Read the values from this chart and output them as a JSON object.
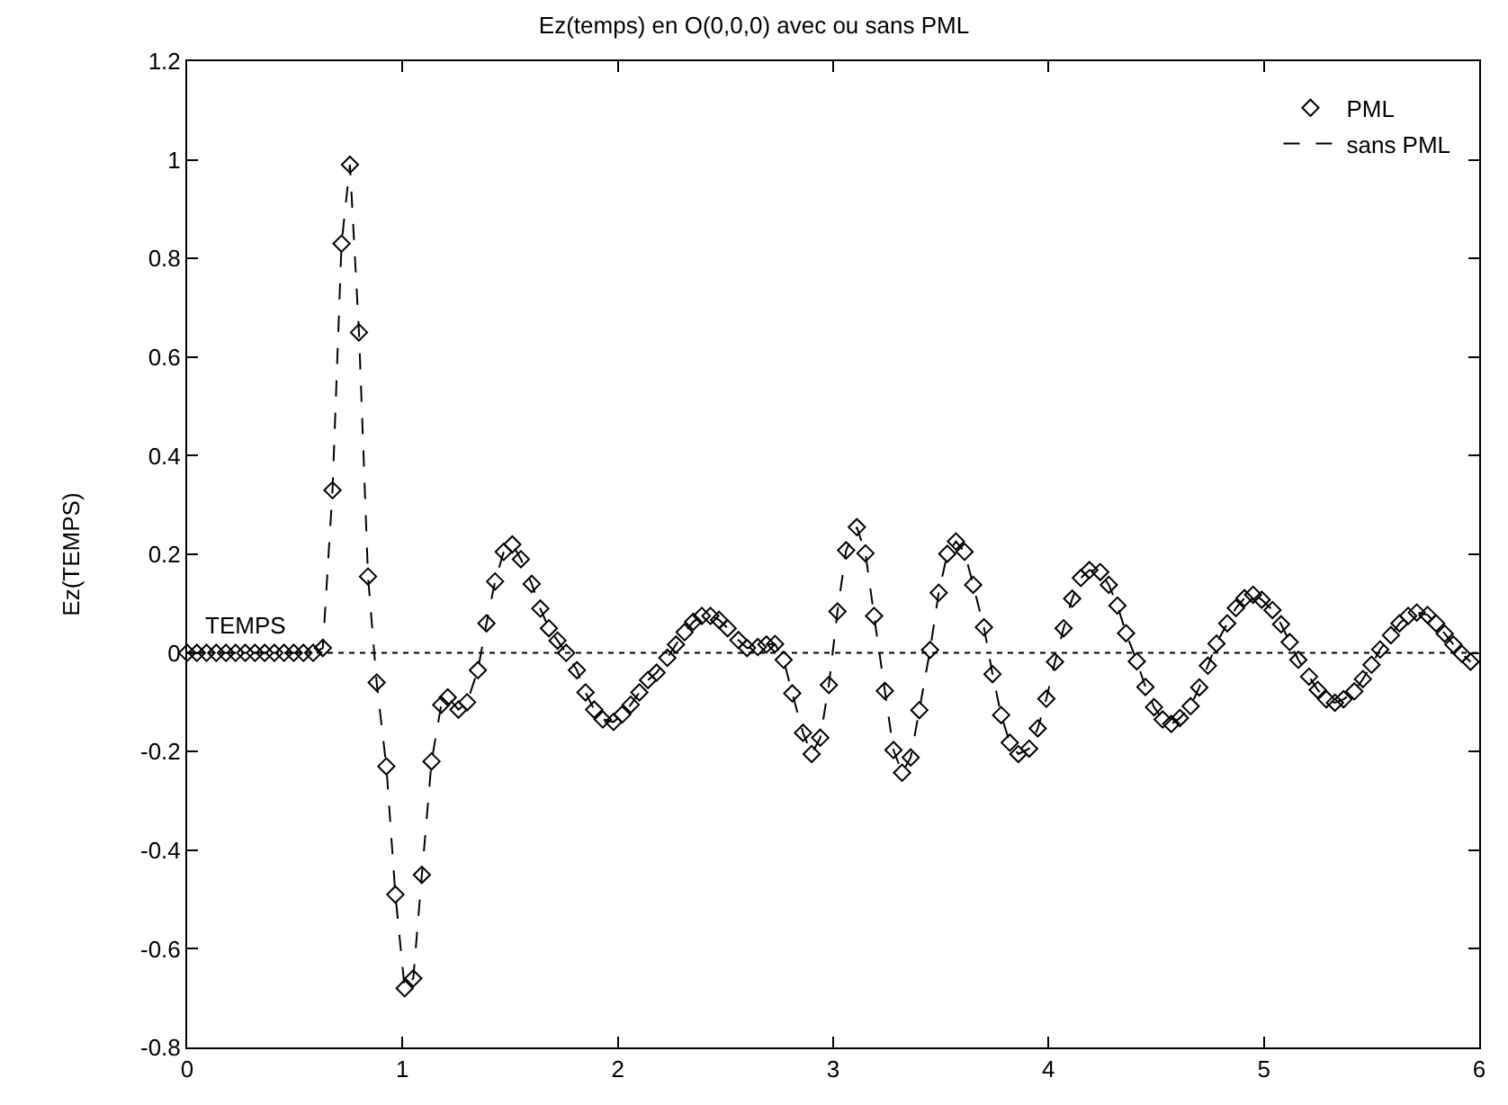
{
  "chart_data": {
    "type": "line",
    "title": "Ez(temps) en O(0,0,0) avec ou sans PML",
    "xlabel": "TEMPS",
    "ylabel": "Ez(TEMPS)",
    "x": [
      0,
      0.045,
      0.09,
      0.135,
      0.18,
      0.225,
      0.27,
      0.315,
      0.36,
      0.405,
      0.45,
      0.495,
      0.54,
      0.585,
      0.63,
      0.675,
      0.717,
      0.756,
      0.798,
      0.84,
      0.88,
      0.925,
      0.967,
      1.01,
      1.05,
      1.09,
      1.135,
      1.18,
      1.21,
      1.26,
      1.3,
      1.35,
      1.39,
      1.43,
      1.47,
      1.51,
      1.55,
      1.6,
      1.64,
      1.68,
      1.72,
      1.76,
      1.81,
      1.85,
      1.89,
      1.93,
      1.98,
      2.02,
      2.06,
      2.1,
      2.14,
      2.18,
      2.23,
      2.27,
      2.31,
      2.35,
      2.39,
      2.43,
      2.47,
      2.51,
      2.56,
      2.6,
      2.65,
      2.69,
      2.73,
      2.77,
      2.81,
      2.86,
      2.9,
      2.94,
      2.98,
      3.02,
      3.06,
      3.11,
      3.15,
      3.19,
      3.24,
      3.28,
      3.32,
      3.36,
      3.4,
      3.45,
      3.49,
      3.53,
      3.57,
      3.61,
      3.65,
      3.7,
      3.74,
      3.78,
      3.82,
      3.86,
      3.91,
      3.95,
      3.99,
      4.03,
      4.07,
      4.11,
      4.15,
      4.19,
      4.24,
      4.28,
      4.32,
      4.36,
      4.41,
      4.45,
      4.49,
      4.53,
      4.57,
      4.61,
      4.66,
      4.7,
      4.74,
      4.78,
      4.83,
      4.87,
      4.91,
      4.95,
      4.99,
      5.04,
      5.08,
      5.12,
      5.16,
      5.21,
      5.25,
      5.29,
      5.33,
      5.37,
      5.42,
      5.46,
      5.5,
      5.54,
      5.59,
      5.63,
      5.67,
      5.71,
      5.76,
      5.8,
      5.84,
      5.88,
      5.92,
      5.96
    ],
    "series": [
      {
        "name": "PML",
        "type": "scatter",
        "marker": "diamond",
        "color": "#000000",
        "values": [
          0,
          0,
          0,
          0,
          0,
          0,
          0,
          0,
          0,
          0,
          0,
          0,
          0,
          0,
          0.01,
          0.33,
          0.83,
          0.99,
          0.65,
          0.155,
          -0.06,
          -0.23,
          -0.49,
          -0.68,
          -0.66,
          -0.45,
          -0.22,
          -0.105,
          -0.09,
          -0.115,
          -0.1,
          -0.035,
          0.06,
          0.145,
          0.205,
          0.22,
          0.19,
          0.14,
          0.09,
          0.05,
          0.025,
          0,
          -0.035,
          -0.08,
          -0.115,
          -0.135,
          -0.14,
          -0.125,
          -0.105,
          -0.08,
          -0.055,
          -0.04,
          -0.01,
          0.017,
          0.042,
          0.063,
          0.075,
          0.075,
          0.067,
          0.05,
          0.026,
          0.01,
          0.012,
          0.017,
          0.018,
          -0.014,
          -0.082,
          -0.162,
          -0.205,
          -0.172,
          -0.065,
          0.084,
          0.208,
          0.255,
          0.202,
          0.075,
          -0.077,
          -0.197,
          -0.243,
          -0.212,
          -0.116,
          0.006,
          0.122,
          0.201,
          0.226,
          0.205,
          0.138,
          0.052,
          -0.043,
          -0.126,
          -0.182,
          -0.205,
          -0.194,
          -0.153,
          -0.093,
          -0.018,
          0.05,
          0.11,
          0.152,
          0.168,
          0.164,
          0.138,
          0.096,
          0.04,
          -0.017,
          -0.069,
          -0.11,
          -0.135,
          -0.144,
          -0.132,
          -0.108,
          -0.07,
          -0.026,
          0.019,
          0.06,
          0.091,
          0.111,
          0.118,
          0.108,
          0.087,
          0.058,
          0.022,
          -0.014,
          -0.048,
          -0.075,
          -0.094,
          -0.101,
          -0.094,
          -0.078,
          -0.053,
          -0.024,
          0.007,
          0.036,
          0.06,
          0.075,
          0.082,
          0.077,
          0.06,
          0.039,
          0.017,
          -0.002,
          -0.018
        ]
      },
      {
        "name": "sans PML",
        "line_style": "dashed",
        "color": "#000000",
        "values": [
          0,
          0,
          0,
          0,
          0,
          0,
          0,
          0,
          0,
          0,
          0,
          0,
          0,
          0,
          0.01,
          0.33,
          0.83,
          0.99,
          0.65,
          0.155,
          -0.06,
          -0.23,
          -0.49,
          -0.68,
          -0.66,
          -0.45,
          -0.22,
          -0.105,
          -0.09,
          -0.115,
          -0.1,
          -0.035,
          0.06,
          0.145,
          0.205,
          0.22,
          0.19,
          0.14,
          0.09,
          0.05,
          0.025,
          0,
          -0.035,
          -0.08,
          -0.115,
          -0.135,
          -0.14,
          -0.125,
          -0.105,
          -0.08,
          -0.055,
          -0.04,
          -0.01,
          0.017,
          0.042,
          0.063,
          0.075,
          0.075,
          0.067,
          0.05,
          0.026,
          0.01,
          0.012,
          0.017,
          0.018,
          -0.014,
          -0.082,
          -0.162,
          -0.205,
          -0.172,
          -0.065,
          0.084,
          0.208,
          0.255,
          0.202,
          0.075,
          -0.077,
          -0.197,
          -0.243,
          -0.212,
          -0.116,
          0.006,
          0.122,
          0.201,
          0.226,
          0.205,
          0.138,
          0.052,
          -0.043,
          -0.126,
          -0.182,
          -0.205,
          -0.194,
          -0.153,
          -0.093,
          -0.018,
          0.05,
          0.11,
          0.152,
          0.168,
          0.164,
          0.138,
          0.096,
          0.04,
          -0.017,
          -0.069,
          -0.11,
          -0.135,
          -0.144,
          -0.132,
          -0.108,
          -0.07,
          -0.026,
          0.019,
          0.06,
          0.091,
          0.111,
          0.118,
          0.108,
          0.087,
          0.058,
          0.022,
          -0.014,
          -0.048,
          -0.075,
          -0.094,
          -0.101,
          -0.094,
          -0.078,
          -0.053,
          -0.024,
          0.007,
          0.036,
          0.06,
          0.075,
          0.082,
          0.077,
          0.06,
          0.039,
          0.017,
          -0.002,
          -0.018
        ]
      }
    ],
    "ref_lines": [
      {
        "axis": "y",
        "value": 0,
        "line_style": "dotted",
        "color": "#000000"
      }
    ],
    "xlim": [
      0,
      6
    ],
    "ylim": [
      -0.8,
      1.2
    ],
    "xticks": [
      0,
      1,
      2,
      3,
      4,
      5,
      6
    ],
    "yticks": [
      -0.8,
      -0.6,
      -0.4,
      -0.2,
      0,
      0.2,
      0.4,
      0.6,
      0.8,
      1,
      1.2
    ],
    "grid": false,
    "legend": "top right"
  }
}
